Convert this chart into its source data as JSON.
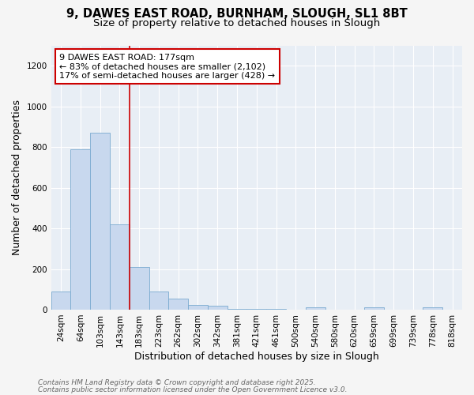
{
  "title_line1": "9, DAWES EAST ROAD, BURNHAM, SLOUGH, SL1 8BT",
  "title_line2": "Size of property relative to detached houses in Slough",
  "categories": [
    "24sqm",
    "64sqm",
    "103sqm",
    "143sqm",
    "183sqm",
    "223sqm",
    "262sqm",
    "302sqm",
    "342sqm",
    "381sqm",
    "421sqm",
    "461sqm",
    "500sqm",
    "540sqm",
    "580sqm",
    "620sqm",
    "659sqm",
    "699sqm",
    "739sqm",
    "778sqm",
    "818sqm"
  ],
  "values": [
    90,
    790,
    870,
    420,
    210,
    90,
    55,
    25,
    20,
    5,
    5,
    5,
    0,
    10,
    0,
    0,
    10,
    0,
    0,
    10,
    0
  ],
  "bar_color": "#c8d8ee",
  "bar_edge_color": "#7aaad0",
  "vline_index": 4,
  "vline_color": "#cc0000",
  "xlabel": "Distribution of detached houses by size in Slough",
  "ylabel": "Number of detached properties",
  "ylim": [
    0,
    1300
  ],
  "yticks": [
    0,
    200,
    400,
    600,
    800,
    1000,
    1200
  ],
  "annotation_title": "9 DAWES EAST ROAD: 177sqm",
  "annotation_line2": "← 83% of detached houses are smaller (2,102)",
  "annotation_line3": "17% of semi-detached houses are larger (428) →",
  "annotation_box_color": "#ffffff",
  "annotation_box_edge": "#cc0000",
  "footnote_line1": "Contains HM Land Registry data © Crown copyright and database right 2025.",
  "footnote_line2": "Contains public sector information licensed under the Open Government Licence v3.0.",
  "background_color": "#f5f5f5",
  "plot_bg_color": "#e8eef5",
  "grid_color": "#ffffff",
  "title_fontsize": 10.5,
  "subtitle_fontsize": 9.5,
  "axis_label_fontsize": 9,
  "tick_fontsize": 7.5,
  "annotation_fontsize": 8,
  "footnote_fontsize": 6.5
}
